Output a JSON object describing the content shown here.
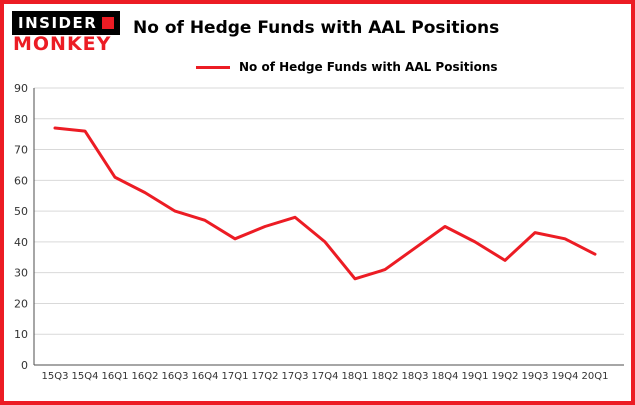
{
  "logo": {
    "line1": "INSIDER",
    "line2": "MONKEY"
  },
  "header": {
    "title": "No of Hedge Funds with AAL Positions"
  },
  "legend": {
    "label": "No of Hedge Funds with AAL Positions"
  },
  "colors": {
    "line": "#ec1c24",
    "border": "#ec1c24",
    "grid": "#d9d9d9",
    "axis": "#4d4d4d",
    "tick_text": "#333333"
  },
  "chart_data": {
    "type": "line",
    "title": "No of Hedge Funds with AAL Positions",
    "legend_entry": "No of Hedge Funds with AAL Positions",
    "categories": [
      "15Q3",
      "15Q4",
      "16Q1",
      "16Q2",
      "16Q3",
      "16Q4",
      "17Q1",
      "17Q2",
      "17Q3",
      "17Q4",
      "18Q1",
      "18Q2",
      "18Q3",
      "18Q4",
      "19Q1",
      "19Q2",
      "19Q3",
      "19Q4",
      "20Q1"
    ],
    "values": [
      77,
      76,
      61,
      56,
      50,
      47,
      41,
      45,
      48,
      40,
      28,
      31,
      38,
      45,
      40,
      34,
      43,
      41,
      36
    ],
    "xlabel": "",
    "ylabel": "",
    "ylim": [
      0,
      90
    ],
    "ytick_step": 10,
    "grid": true,
    "legend_position": "top-left"
  }
}
